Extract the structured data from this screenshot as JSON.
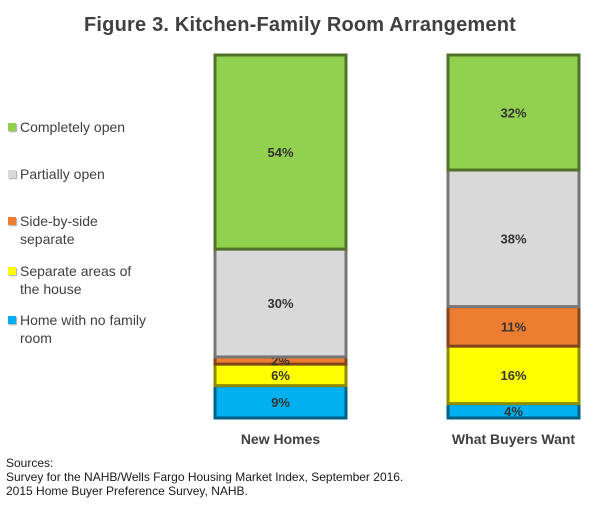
{
  "chart_data": {
    "type": "bar",
    "stacked": true,
    "normalized_percent": true,
    "title": "Figure 3.  Kitchen-Family Room Arrangement",
    "categories": [
      "New Homes",
      "What Buyers Want"
    ],
    "series": [
      {
        "name": "Completely open",
        "values": [
          54,
          32
        ],
        "labels": [
          "54%",
          "32%"
        ],
        "color": "#92D050"
      },
      {
        "name": "Partially open",
        "values": [
          30,
          38
        ],
        "labels": [
          "30%",
          "38%"
        ],
        "color": "#D9D9D9"
      },
      {
        "name": "Side-by-side separate",
        "values": [
          2,
          11
        ],
        "labels": [
          "2%",
          "11%"
        ],
        "color": "#ED7D31"
      },
      {
        "name": "Separate areas of the house",
        "values": [
          6,
          16
        ],
        "labels": [
          "6%",
          "16%"
        ],
        "color": "#FFFF00"
      },
      {
        "name": "Home with no family room",
        "values": [
          9,
          4
        ],
        "labels": [
          "9%",
          "4%"
        ],
        "color": "#00B0F0"
      }
    ],
    "stack_order_bottom_to_top": [
      "Home with no family room",
      "Separate areas of the house",
      "Side-by-side separate",
      "Partially open",
      "Completely open"
    ],
    "legend_position": "left",
    "legend_labels": [
      [
        "Completely open"
      ],
      [
        "Partially open"
      ],
      [
        "Side-by-side",
        "separate"
      ],
      [
        "Separate areas of",
        "the house"
      ],
      [
        "Home with no family",
        "room"
      ]
    ],
    "grid": false
  },
  "sources": {
    "heading": "Sources:",
    "lines": [
      "Survey for the NAHB/Wells Fargo Housing Market Index, September 2016.",
      "2015 Home Buyer Preference Survey, NAHB."
    ]
  }
}
